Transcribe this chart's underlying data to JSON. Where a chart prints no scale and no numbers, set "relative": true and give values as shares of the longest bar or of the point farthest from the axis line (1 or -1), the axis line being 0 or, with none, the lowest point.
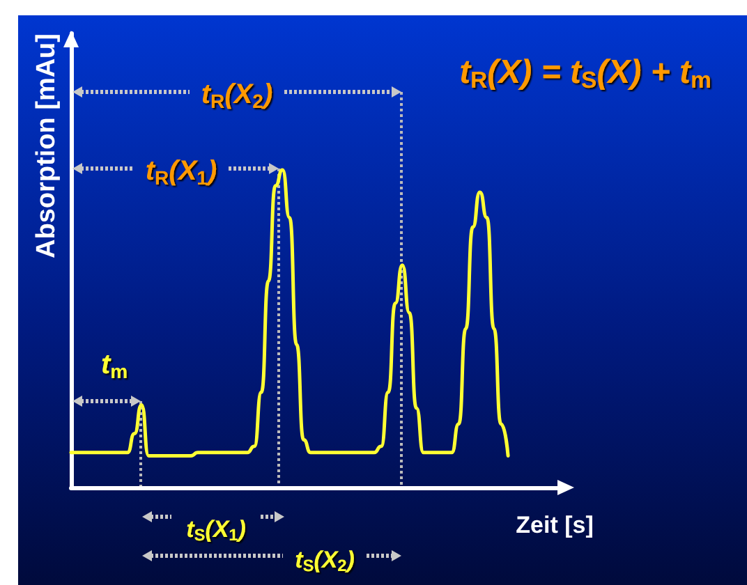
{
  "chart_data": {
    "type": "line",
    "relative": true,
    "color": "#ffff33",
    "line_style": "solid",
    "xlabel": "Zeit [s]",
    "ylabel": "Absorption [mAu]",
    "categories": [
      null,
      null,
      null,
      null,
      null,
      null,
      null,
      null,
      null,
      null,
      null,
      null,
      null,
      null,
      null,
      null,
      null,
      null,
      null,
      null,
      null,
      null,
      null,
      null,
      null,
      null,
      null,
      null,
      null,
      null,
      null,
      null,
      null,
      null,
      null,
      null,
      null,
      null,
      null,
      null,
      null,
      null,
      null,
      null,
      null,
      null,
      null,
      null,
      null,
      null,
      null,
      null,
      null,
      null,
      null,
      null,
      null,
      null,
      null,
      null,
      null,
      null,
      null,
      null,
      null,
      null,
      null,
      null,
      null,
      null,
      null
    ],
    "values": [
      0.11,
      0.11,
      0.11,
      0.11,
      0.11,
      0.11,
      0.11,
      0.11,
      0.11,
      0.17,
      0.26,
      0.1,
      0.1,
      0.1,
      0.1,
      0.1,
      0.1,
      0.1,
      0.11,
      0.11,
      0.11,
      0.11,
      0.11,
      0.11,
      0.11,
      0.11,
      0.13,
      0.3,
      0.65,
      0.95,
      1.0,
      0.85,
      0.45,
      0.15,
      0.11,
      0.11,
      0.11,
      0.11,
      0.11,
      0.11,
      0.11,
      0.11,
      0.11,
      0.11,
      0.13,
      0.3,
      0.58,
      0.7,
      0.55,
      0.25,
      0.11,
      0.11,
      0.11,
      0.11,
      0.11,
      0.2,
      0.5,
      0.82,
      0.93,
      0.85,
      0.5,
      0.2,
      0.1,
      null,
      null,
      null,
      null,
      null,
      null,
      null,
      null
    ],
    "annotations": [
      "t$_{R}$(X) = t$_{S}$(X) + t$_{m}$",
      "t$_{R}$(X$_{2}$)",
      "t$_{R}$(X$_{1}$)",
      "t$_{m}$",
      "t$_{S}$(X$_{1}$)",
      "t$_{S}$(X$_{2}$)"
    ]
  }
}
